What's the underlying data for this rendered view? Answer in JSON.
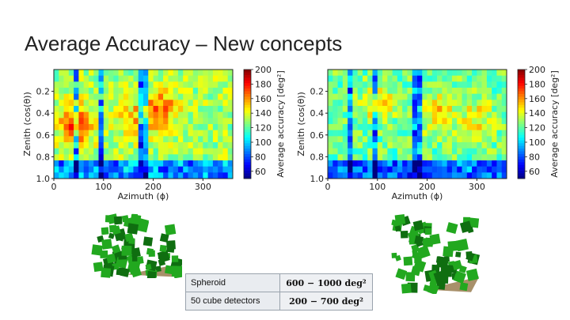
{
  "slide": {
    "title": "Average Accuracy – New concepts"
  },
  "chart_data": [
    {
      "type": "heatmap",
      "xlabel": "Azimuth (ϕ)",
      "ylabel": "Zenith (cos(θ))",
      "xlim": [
        0,
        360
      ],
      "ylim": [
        0.0,
        1.0
      ],
      "xticks": [
        "0",
        "100",
        "200",
        "300"
      ],
      "xtick_values": [
        0,
        100,
        200,
        300
      ],
      "yticks": [
        "0.2",
        "0.4",
        "0.6",
        "0.8",
        "1.0"
      ],
      "ytick_values": [
        0.2,
        0.4,
        0.6,
        0.8,
        1.0
      ],
      "colorbar": {
        "label": "Average accuracy [deg²]",
        "range": [
          50,
          200
        ],
        "ticks": [
          "200",
          "180",
          "160",
          "140",
          "120",
          "100",
          "80",
          "60"
        ],
        "tick_values": [
          200,
          180,
          160,
          140,
          120,
          100,
          80,
          60
        ]
      },
      "hot_spots": [
        {
          "azimuth": 45,
          "zenith": 0.5,
          "value": 175
        },
        {
          "azimuth": 215,
          "zenith": 0.35,
          "value": 165
        },
        {
          "azimuth": 160,
          "zenith": 0.45,
          "value": 150
        }
      ],
      "cool_bands_azimuth": [
        45,
        95,
        180
      ],
      "base_value": 130
    },
    {
      "type": "heatmap",
      "xlabel": "Azimuth (ϕ)",
      "ylabel": "Zenith (cos(θ))",
      "xlim": [
        0,
        360
      ],
      "ylim": [
        0.0,
        1.0
      ],
      "xticks": [
        "0",
        "100",
        "200",
        "300"
      ],
      "xtick_values": [
        0,
        100,
        200,
        300
      ],
      "yticks": [
        "0.2",
        "0.4",
        "0.6",
        "0.8",
        "1.0"
      ],
      "ytick_values": [
        0.2,
        0.4,
        0.6,
        0.8,
        1.0
      ],
      "colorbar": {
        "label": "Average accuracy [deg²]",
        "range": [
          50,
          200
        ],
        "ticks": [
          "200",
          "180",
          "160",
          "140",
          "120",
          "100",
          "80",
          "60"
        ],
        "tick_values": [
          200,
          180,
          160,
          140,
          120,
          100,
          80,
          60
        ]
      },
      "hot_spots": [
        {
          "azimuth": 100,
          "zenith": 0.3,
          "value": 150
        },
        {
          "azimuth": 220,
          "zenith": 0.4,
          "value": 148
        },
        {
          "azimuth": 300,
          "zenith": 0.45,
          "value": 145
        }
      ],
      "cool_bands_azimuth": [
        45,
        95,
        180
      ],
      "base_value": 122
    }
  ],
  "legend_table": {
    "rows": [
      {
        "name": "Spheroid",
        "value": "600 − 1000 deg²"
      },
      {
        "name": "50 cube detectors",
        "value": "200 − 700 deg²"
      }
    ]
  },
  "colors": {
    "cube_green": "#22a81f",
    "cube_dark": "#0f6e10",
    "cube_base": "#a8906a"
  }
}
